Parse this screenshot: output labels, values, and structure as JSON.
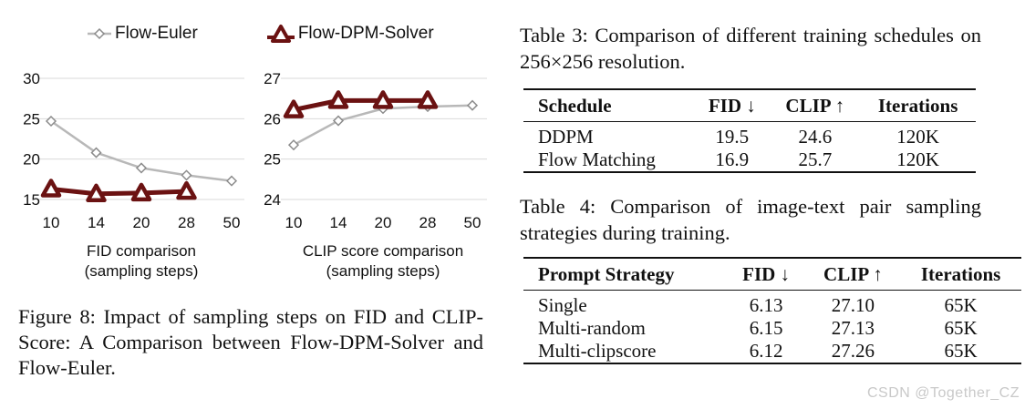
{
  "legend": {
    "series_a": "Flow-Euler",
    "series_b": "Flow-DPM-Solver"
  },
  "chart_data": [
    {
      "type": "line",
      "title": "",
      "xlabel": "FID comparison\n(sampling steps)",
      "xlabel_line1": "FID comparison",
      "xlabel_line2": "(sampling steps)",
      "ylabel": "",
      "categories": [
        "10",
        "14",
        "20",
        "28",
        "50"
      ],
      "ylim": [
        15,
        30
      ],
      "yticks": [
        "30",
        "25",
        "20",
        "15"
      ],
      "series": [
        {
          "name": "Flow-Euler",
          "values": [
            24.7,
            20.8,
            18.9,
            18.0,
            17.3
          ],
          "color": "#b8b8b8",
          "marker": "diamond"
        },
        {
          "name": "Flow-DPM-Solver",
          "values": [
            16.3,
            15.7,
            15.8,
            16.0,
            null
          ],
          "color": "#6b1212",
          "marker": "triangle"
        }
      ]
    },
    {
      "type": "line",
      "title": "",
      "xlabel": "CLIP score comparison\n(sampling steps)",
      "xlabel_line1": "CLIP score comparison",
      "xlabel_line2": "(sampling steps)",
      "ylabel": "",
      "categories": [
        "10",
        "14",
        "20",
        "28",
        "50"
      ],
      "ylim": [
        24,
        27
      ],
      "yticks": [
        "27",
        "26",
        "25",
        "24"
      ],
      "series": [
        {
          "name": "Flow-Euler",
          "values": [
            25.35,
            25.95,
            26.25,
            26.3,
            26.33
          ],
          "color": "#b8b8b8",
          "marker": "diamond"
        },
        {
          "name": "Flow-DPM-Solver",
          "values": [
            26.22,
            26.45,
            26.45,
            26.45,
            null
          ],
          "color": "#6b1212",
          "marker": "triangle"
        }
      ]
    }
  ],
  "figure_caption": "Figure 8: Impact of sampling steps on FID and CLIP-Score: A Comparison between Flow-DPM-Solver and Flow-Euler.",
  "table3": {
    "caption": "Table 3: Comparison of different training schedules on 256×256 resolution.",
    "headers": [
      "Schedule",
      "FID ↓",
      "CLIP ↑",
      "Iterations"
    ],
    "rows": [
      [
        "DDPM",
        "19.5",
        "24.6",
        "120K"
      ],
      [
        "Flow Matching",
        "16.9",
        "25.7",
        "120K"
      ]
    ]
  },
  "table4": {
    "caption": "Table 4: Comparison of image-text pair sampling strategies during training.",
    "headers": [
      "Prompt Strategy",
      "FID ↓",
      "CLIP ↑",
      "Iterations"
    ],
    "rows": [
      [
        "Single",
        "6.13",
        "27.10",
        "65K"
      ],
      [
        "Multi-random",
        "6.15",
        "27.13",
        "65K"
      ],
      [
        "Multi-clipscore",
        "6.12",
        "27.26",
        "65K"
      ]
    ]
  },
  "watermark": "CSDN @Together_CZ"
}
